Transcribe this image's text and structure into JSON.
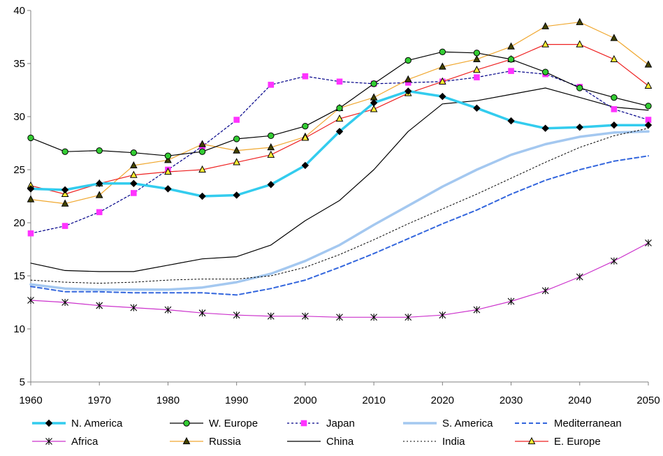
{
  "chart_data": {
    "type": "line",
    "title": "",
    "xlabel": "",
    "ylabel": "",
    "xlim": [
      1960,
      2050
    ],
    "ylim": [
      5,
      40
    ],
    "x_ticks": [
      1960,
      1970,
      1980,
      1990,
      2000,
      2010,
      2020,
      2030,
      2040,
      2050
    ],
    "y_ticks": [
      5,
      10,
      15,
      20,
      25,
      30,
      35,
      40
    ],
    "grid": false,
    "legend_position": "bottom",
    "x": [
      1960,
      1965,
      1970,
      1975,
      1980,
      1985,
      1990,
      1995,
      2000,
      2005,
      2010,
      2015,
      2020,
      2025,
      2030,
      2035,
      2040,
      2045,
      2050
    ],
    "series": [
      {
        "name": "N. America",
        "color": "#33CCEE",
        "width": 3.5,
        "dash": "",
        "marker": "diamond",
        "markerFill": "#000000",
        "markerStroke": "#000000",
        "values": [
          23.2,
          23.1,
          23.7,
          23.7,
          23.2,
          22.5,
          22.6,
          23.6,
          25.4,
          28.6,
          31.3,
          32.4,
          31.9,
          30.8,
          29.6,
          28.9,
          29.0,
          29.2,
          29.2
        ]
      },
      {
        "name": "W. Europe",
        "color": "#000000",
        "width": 1.2,
        "dash": "",
        "marker": "circle",
        "markerFill": "#33CC33",
        "markerStroke": "#000000",
        "values": [
          28.0,
          26.7,
          26.8,
          26.6,
          26.3,
          26.7,
          27.9,
          28.2,
          29.1,
          30.8,
          33.1,
          35.3,
          36.1,
          36.0,
          35.4,
          34.2,
          32.7,
          31.8,
          31.0
        ]
      },
      {
        "name": "Japan",
        "color": "#000088",
        "width": 1.2,
        "dash": "3,3",
        "marker": "square",
        "markerFill": "#FF33FF",
        "markerStroke": "#FF33FF",
        "values": [
          19.0,
          19.7,
          21.0,
          22.8,
          25.0,
          27.2,
          29.7,
          33.0,
          33.8,
          33.3,
          33.1,
          33.2,
          33.3,
          33.7,
          34.3,
          34.0,
          32.8,
          30.7,
          29.7
        ]
      },
      {
        "name": "S. America",
        "color": "#A4C8F0",
        "width": 3.5,
        "dash": "",
        "marker": "none",
        "markerFill": "",
        "markerStroke": "",
        "values": [
          14.2,
          13.8,
          13.7,
          13.7,
          13.7,
          13.9,
          14.4,
          15.2,
          16.4,
          17.9,
          19.8,
          21.6,
          23.4,
          25.0,
          26.4,
          27.4,
          28.1,
          28.5,
          28.6
        ]
      },
      {
        "name": "Mediterranean",
        "color": "#3366DD",
        "width": 2,
        "dash": "6,4",
        "marker": "none",
        "markerFill": "",
        "markerStroke": "",
        "values": [
          14.0,
          13.5,
          13.5,
          13.4,
          13.4,
          13.4,
          13.2,
          13.8,
          14.6,
          15.8,
          17.1,
          18.5,
          19.9,
          21.2,
          22.7,
          24.0,
          25.0,
          25.8,
          26.3
        ]
      },
      {
        "name": "Africa",
        "color": "#CC33CC",
        "width": 1.2,
        "dash": "",
        "marker": "asterisk",
        "markerFill": "",
        "markerStroke": "#000000",
        "values": [
          12.7,
          12.5,
          12.2,
          12.0,
          11.8,
          11.5,
          11.3,
          11.2,
          11.2,
          11.1,
          11.1,
          11.1,
          11.3,
          11.8,
          12.6,
          13.6,
          14.9,
          16.4,
          18.1
        ]
      },
      {
        "name": "Russia",
        "color": "#F0A830",
        "width": 1.2,
        "dash": "",
        "marker": "triangle",
        "markerFill": "#444400",
        "markerStroke": "#000000",
        "values": [
          22.2,
          21.8,
          22.6,
          25.4,
          25.9,
          27.4,
          26.8,
          27.1,
          28.1,
          30.8,
          31.8,
          33.5,
          34.7,
          35.4,
          36.6,
          38.5,
          38.9,
          37.4,
          34.9
        ]
      },
      {
        "name": "China",
        "color": "#000000",
        "width": 1.2,
        "dash": "",
        "marker": "none",
        "markerFill": "",
        "markerStroke": "",
        "values": [
          16.2,
          15.5,
          15.4,
          15.4,
          16.0,
          16.6,
          16.8,
          17.9,
          20.2,
          22.1,
          25.0,
          28.6,
          31.2,
          31.5,
          32.1,
          32.7,
          31.8,
          30.9,
          30.6
        ]
      },
      {
        "name": "India",
        "color": "#000000",
        "width": 1,
        "dash": "2,3",
        "marker": "none",
        "markerFill": "",
        "markerStroke": "",
        "values": [
          14.6,
          14.4,
          14.3,
          14.4,
          14.6,
          14.7,
          14.7,
          15.0,
          15.8,
          17.0,
          18.4,
          19.9,
          21.3,
          22.7,
          24.2,
          25.7,
          27.1,
          28.2,
          28.9
        ]
      },
      {
        "name": "E. Europe",
        "color": "#EE2222",
        "width": 1.2,
        "dash": "",
        "marker": "triangle",
        "markerFill": "#FFEE33",
        "markerStroke": "#000000",
        "values": [
          23.5,
          22.7,
          23.7,
          24.5,
          24.8,
          25.0,
          25.7,
          26.4,
          28.0,
          29.8,
          30.7,
          32.2,
          33.3,
          34.4,
          35.4,
          36.8,
          36.8,
          35.4,
          32.9
        ]
      }
    ]
  }
}
